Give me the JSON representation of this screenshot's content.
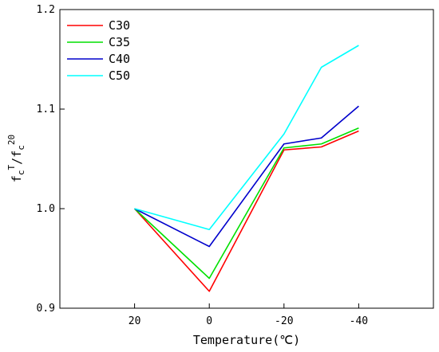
{
  "chart_data": {
    "type": "line",
    "title": "",
    "xlabel": "Temperature(℃)",
    "ylabel": {
      "base": "f",
      "sub1": "c",
      "sup1": "T",
      "slash": "/f",
      "sub2": "c",
      "sup2": "20"
    },
    "x": [
      20,
      0,
      -20,
      -30,
      -40
    ],
    "x_ticks": [
      20,
      0,
      -20,
      -40
    ],
    "x_tick_labels": [
      "20",
      "0",
      "-20",
      "-40"
    ],
    "xlim": [
      40,
      -60
    ],
    "ylim": [
      0.9,
      1.2
    ],
    "y_ticks": [
      0.9,
      1.0,
      1.1,
      1.2
    ],
    "y_tick_labels": [
      "0.9",
      "1.0",
      "1.1",
      "1.2"
    ],
    "grid": false,
    "legend_position": "top-left",
    "series": [
      {
        "name": "C30",
        "color": "#ff0000",
        "values": [
          1.0,
          0.917,
          1.059,
          1.062,
          1.078
        ]
      },
      {
        "name": "C35",
        "color": "#00e000",
        "values": [
          1.0,
          0.93,
          1.061,
          1.065,
          1.081
        ]
      },
      {
        "name": "C40",
        "color": "#0000cc",
        "values": [
          1.0,
          0.962,
          1.065,
          1.071,
          1.103
        ]
      },
      {
        "name": "C50",
        "color": "#00ffff",
        "values": [
          1.0,
          0.979,
          1.075,
          1.142,
          1.164
        ]
      }
    ]
  }
}
